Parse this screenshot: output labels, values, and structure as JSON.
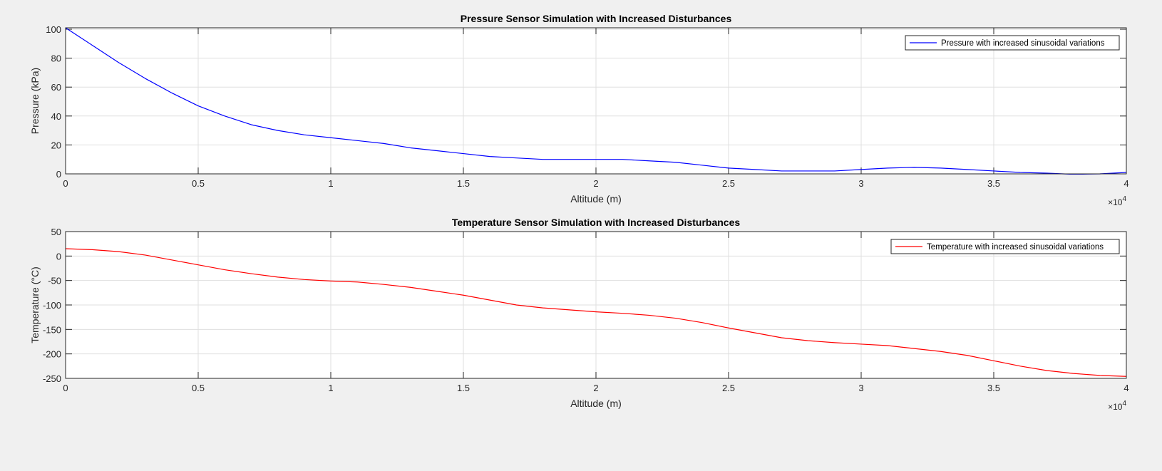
{
  "chart_data": [
    {
      "type": "line",
      "title": "Pressure Sensor Simulation with Increased Disturbances",
      "xlabel": "Altitude (m)",
      "ylabel": "Pressure (kPa)",
      "xlim": [
        0,
        40000
      ],
      "ylim": [
        0,
        101
      ],
      "xticks": [
        0,
        5000,
        10000,
        15000,
        20000,
        25000,
        30000,
        35000,
        40000
      ],
      "xtick_labels": [
        "0",
        "0.5",
        "1",
        "1.5",
        "2",
        "2.5",
        "3",
        "3.5",
        "4"
      ],
      "x_exponent": "×10",
      "x_exponent_power": "4",
      "yticks": [
        0,
        20,
        40,
        60,
        80,
        100
      ],
      "ytick_labels": [
        "0",
        "20",
        "40",
        "60",
        "80",
        "100"
      ],
      "grid": true,
      "legend_position": "top-right",
      "series": [
        {
          "name": "Pressure with increased sinusoidal variations",
          "color": "#0000ff",
          "x": [
            0,
            1000,
            2000,
            3000,
            4000,
            5000,
            6000,
            7000,
            8000,
            9000,
            10000,
            11000,
            12000,
            13000,
            14000,
            15000,
            16000,
            17000,
            18000,
            19000,
            20000,
            21000,
            22000,
            23000,
            24000,
            25000,
            26000,
            27000,
            28000,
            29000,
            30000,
            31000,
            32000,
            33000,
            34000,
            35000,
            36000,
            37000,
            38000,
            39000,
            40000
          ],
          "y": [
            101,
            89,
            77,
            66,
            56,
            47,
            40,
            34,
            30,
            27,
            25,
            23,
            21,
            18,
            16,
            14,
            12,
            11,
            10,
            10,
            10,
            10,
            9,
            8,
            6,
            4,
            3,
            2,
            2,
            2,
            3,
            4,
            4.5,
            4,
            3,
            2,
            1,
            0.5,
            -0.3,
            0,
            1
          ]
        }
      ]
    },
    {
      "type": "line",
      "title": "Temperature Sensor Simulation with Increased Disturbances",
      "xlabel": "Altitude (m)",
      "ylabel": "Temperature (°C)",
      "xlim": [
        0,
        40000
      ],
      "ylim": [
        -250,
        50
      ],
      "xticks": [
        0,
        5000,
        10000,
        15000,
        20000,
        25000,
        30000,
        35000,
        40000
      ],
      "xtick_labels": [
        "0",
        "0.5",
        "1",
        "1.5",
        "2",
        "2.5",
        "3",
        "3.5",
        "4"
      ],
      "x_exponent": "×10",
      "x_exponent_power": "4",
      "yticks": [
        -250,
        -200,
        -150,
        -100,
        -50,
        0,
        50
      ],
      "ytick_labels": [
        "-250",
        "-200",
        "-150",
        "-100",
        "-50",
        "0",
        "50"
      ],
      "grid": true,
      "legend_position": "top-right",
      "series": [
        {
          "name": "Temperature with increased sinusoidal variations",
          "color": "#ff0000",
          "x": [
            0,
            1000,
            2000,
            3000,
            4000,
            5000,
            6000,
            7000,
            8000,
            9000,
            10000,
            11000,
            12000,
            13000,
            14000,
            15000,
            16000,
            17000,
            18000,
            19000,
            20000,
            21000,
            22000,
            23000,
            24000,
            25000,
            26000,
            27000,
            28000,
            29000,
            30000,
            31000,
            32000,
            33000,
            34000,
            35000,
            36000,
            37000,
            38000,
            39000,
            40000
          ],
          "y": [
            15,
            13,
            9,
            2,
            -8,
            -18,
            -28,
            -36,
            -43,
            -48,
            -51,
            -53,
            -58,
            -64,
            -72,
            -80,
            -90,
            -100,
            -106,
            -110,
            -114,
            -117,
            -121,
            -127,
            -136,
            -147,
            -157,
            -167,
            -173,
            -177,
            -180,
            -183,
            -189,
            -195,
            -203,
            -214,
            -225,
            -234,
            -240,
            -244,
            -246
          ]
        }
      ]
    }
  ]
}
